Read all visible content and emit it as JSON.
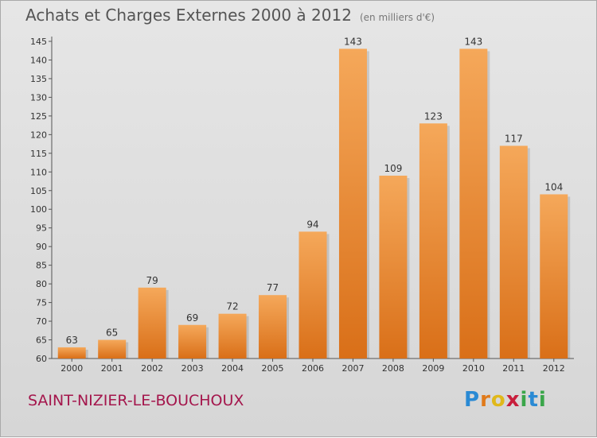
{
  "title": "Achats et Charges Externes 2000 à 2012",
  "unit_note": "(en milliers d'€)",
  "town": "SAINT-NIZIER-LE-BOUCHOUX",
  "brand": {
    "letters": [
      "P",
      "r",
      "o",
      "x",
      "i",
      "t",
      "i"
    ],
    "colors": [
      "#2a8ad4",
      "#e07a1a",
      "#e0b81a",
      "#c81e3c",
      "#3aa64a",
      "#2a8ad4",
      "#3aa64a"
    ]
  },
  "colors": {
    "bar_top": "#f5a85a",
    "bar_bottom": "#d96f18",
    "title": "#555555",
    "town": "#a4164c"
  },
  "chart_data": {
    "type": "bar",
    "categories": [
      "2000",
      "2001",
      "2002",
      "2003",
      "2004",
      "2005",
      "2006",
      "2007",
      "2008",
      "2009",
      "2010",
      "2011",
      "2012"
    ],
    "values": [
      63,
      65,
      79,
      69,
      72,
      77,
      94,
      143,
      109,
      123,
      143,
      117,
      104
    ],
    "ylim": [
      60,
      145
    ],
    "yticks": [
      60,
      65,
      70,
      75,
      80,
      85,
      90,
      95,
      100,
      105,
      110,
      115,
      120,
      125,
      130,
      135,
      140,
      145
    ],
    "grid": false,
    "legend": "none"
  }
}
